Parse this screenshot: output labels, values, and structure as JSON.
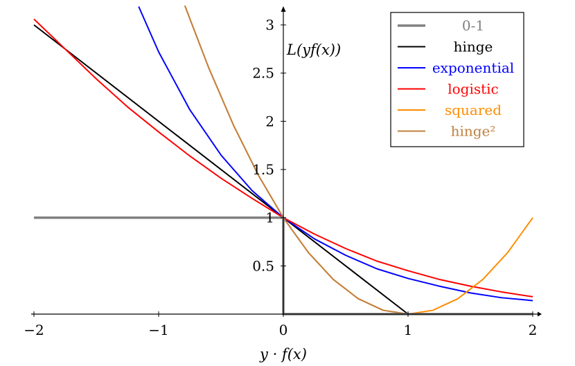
{
  "chart_data": {
    "type": "line",
    "xlabel": "y · f(x)",
    "ylabel": "L(yf(x))",
    "xlim": [
      -2,
      2
    ],
    "ylim": [
      0,
      3.2
    ],
    "x_ticks": [
      {
        "value": -2,
        "label": "−2"
      },
      {
        "value": -1,
        "label": "−1"
      },
      {
        "value": 0,
        "label": "0"
      },
      {
        "value": 1,
        "label": "1"
      },
      {
        "value": 2,
        "label": "2"
      }
    ],
    "y_ticks": [
      {
        "value": 0.5,
        "label": "0.5"
      },
      {
        "value": 1,
        "label": "1"
      },
      {
        "value": 1.5,
        "label": "1.5"
      },
      {
        "value": 2,
        "label": "2"
      },
      {
        "value": 2.5,
        "label": "2.5"
      },
      {
        "value": 3,
        "label": "3"
      }
    ],
    "legend_position": "top-right",
    "series": [
      {
        "name": "0-1",
        "color": "#808080",
        "width": 3.5,
        "x": [
          -2,
          0,
          0,
          2
        ],
        "y": [
          1,
          1,
          0,
          0
        ]
      },
      {
        "name": "hinge",
        "color": "#000000",
        "width": 2,
        "x": [
          -2,
          1,
          2
        ],
        "y": [
          3,
          0,
          0
        ]
      },
      {
        "name": "exponential",
        "color": "#0000ff",
        "width": 2,
        "x": [
          -1.16,
          -1.0,
          -0.75,
          -0.5,
          -0.25,
          0,
          0.25,
          0.5,
          0.75,
          1.0,
          1.25,
          1.5,
          1.75,
          2.0
        ],
        "y": [
          3.19,
          2.72,
          2.12,
          1.65,
          1.28,
          1.0,
          0.78,
          0.61,
          0.47,
          0.37,
          0.29,
          0.22,
          0.17,
          0.14
        ]
      },
      {
        "name": "logistic",
        "color": "#ff0000",
        "width": 2,
        "x": [
          -2.0,
          -1.75,
          -1.5,
          -1.25,
          -1.0,
          -0.75,
          -0.5,
          -0.25,
          0,
          0.25,
          0.5,
          0.75,
          1.0,
          1.25,
          1.5,
          1.75,
          2.0
        ],
        "y": [
          3.06,
          2.75,
          2.44,
          2.15,
          1.89,
          1.64,
          1.41,
          1.2,
          1.0,
          0.83,
          0.68,
          0.55,
          0.45,
          0.36,
          0.29,
          0.23,
          0.18
        ]
      },
      {
        "name": "squared",
        "color": "#ff8c00",
        "width": 2,
        "x": [
          -0.79,
          -0.6,
          -0.4,
          -0.2,
          0,
          0.2,
          0.4,
          0.6,
          0.8,
          1.0,
          1.2,
          1.4,
          1.6,
          1.8,
          2.0
        ],
        "y": [
          3.2,
          2.56,
          1.96,
          1.44,
          1.0,
          0.64,
          0.36,
          0.16,
          0.04,
          0.0,
          0.04,
          0.16,
          0.36,
          0.64,
          1.0
        ]
      },
      {
        "name": "hinge²",
        "color": "#c08040",
        "width": 2,
        "x": [
          -0.79,
          -0.6,
          -0.4,
          -0.2,
          0,
          0.2,
          0.4,
          0.6,
          0.8,
          1.0,
          1.5,
          2.0
        ],
        "y": [
          3.2,
          2.56,
          1.96,
          1.44,
          1.0,
          0.64,
          0.36,
          0.16,
          0.04,
          0.0,
          0.0,
          0.0
        ]
      }
    ]
  }
}
